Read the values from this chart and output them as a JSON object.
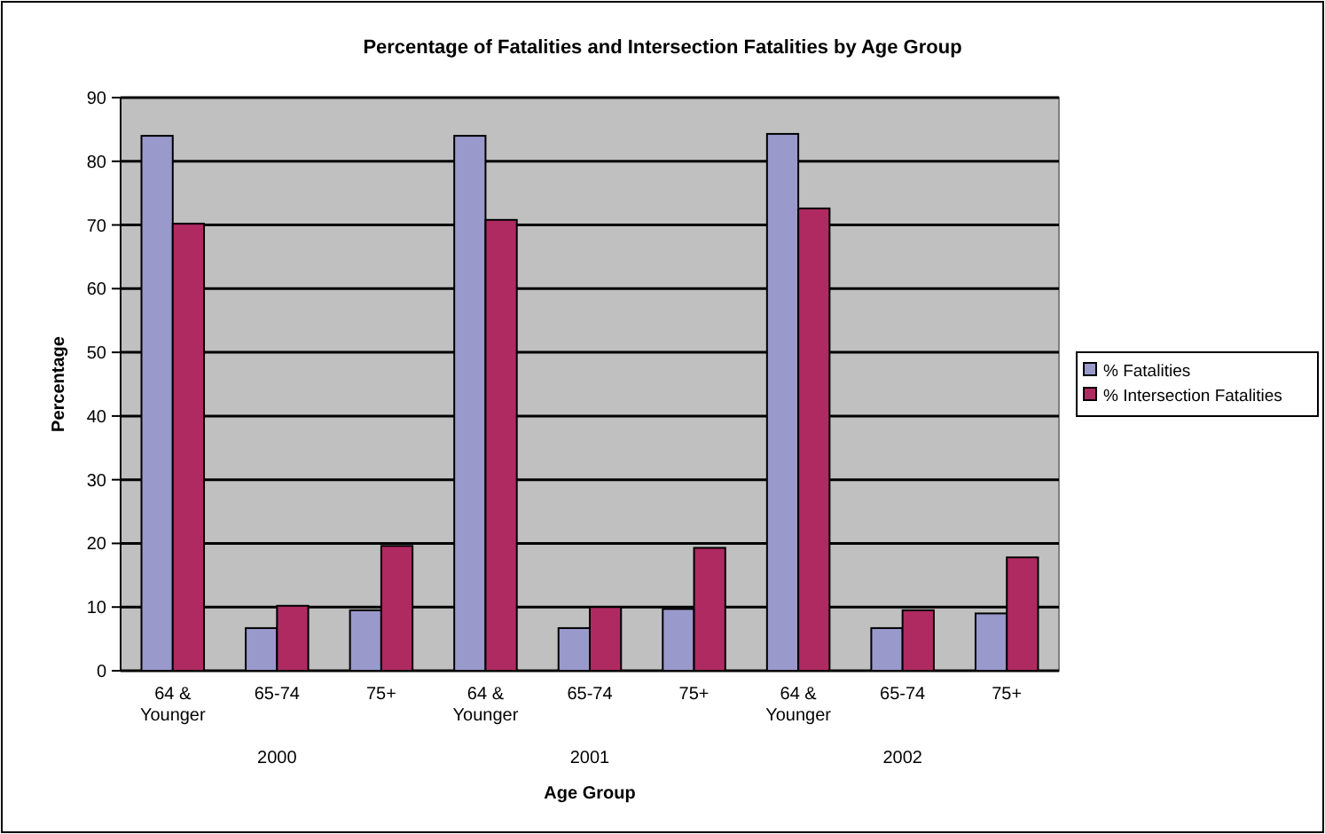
{
  "chart_data": {
    "type": "bar",
    "title": "Percentage of Fatalities and Intersection Fatalities by Age Group",
    "xlabel": "Age Group",
    "ylabel": "Percentage",
    "categories": [
      "64 & Younger",
      "65-74",
      "75+",
      "64 & Younger",
      "65-74",
      "75+",
      "64 & Younger",
      "65-74",
      "75+"
    ],
    "series": [
      {
        "name": "% Fatalities",
        "color": "#9999cc",
        "values": [
          84,
          6.7,
          9.5,
          84,
          6.7,
          9.7,
          84.3,
          6.7,
          9
        ]
      },
      {
        "name": "% Intersection Fatalities",
        "color": "#b02a62",
        "values": [
          70.2,
          10.2,
          19.6,
          70.8,
          10,
          19.3,
          72.6,
          9.5,
          17.8
        ]
      }
    ],
    "annotations": [
      "2000",
      "2001",
      "2002"
    ],
    "ylim": [
      0,
      90
    ],
    "yticks": [
      0,
      10,
      20,
      30,
      40,
      50,
      60,
      70,
      80,
      90
    ],
    "grid": "y",
    "legend": "right"
  }
}
